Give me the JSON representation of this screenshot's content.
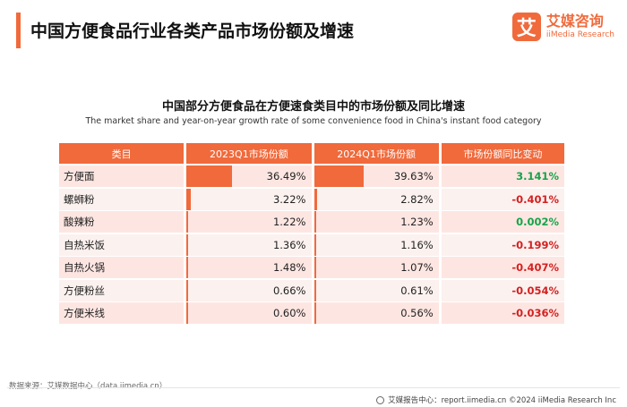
{
  "header": {
    "title": "中国方便食品行业各类产品市场份额及增速",
    "logo_mark": "艾",
    "logo_cn": "艾媒咨询",
    "logo_en": "iiMedia Research"
  },
  "colors": {
    "accent": "#f06a3c",
    "positive": "#17a34a",
    "negative": "#d32121"
  },
  "chart_data": {
    "type": "table",
    "title": "中国部分方便食品在方便速食类目中的市场份额及同比增速",
    "subtitle": "The market share and year-on-year growth rate of some convenience food in China's instant food category",
    "columns": [
      "类目",
      "2023Q1市场份额",
      "2024Q1市场份额",
      "市场份额同比变动"
    ],
    "rows": [
      {
        "category": "方便面",
        "share_2023": 36.49,
        "share_2024": 39.63,
        "change": 3.141,
        "share_2023_label": "36.49%",
        "share_2024_label": "39.63%",
        "change_label": "3.141%"
      },
      {
        "category": "螺蛳粉",
        "share_2023": 3.22,
        "share_2024": 2.82,
        "change": -0.401,
        "share_2023_label": "3.22%",
        "share_2024_label": "2.82%",
        "change_label": "-0.401%"
      },
      {
        "category": "酸辣粉",
        "share_2023": 1.22,
        "share_2024": 1.23,
        "change": 0.002,
        "share_2023_label": "1.22%",
        "share_2024_label": "1.23%",
        "change_label": "0.002%"
      },
      {
        "category": "自热米饭",
        "share_2023": 1.36,
        "share_2024": 1.16,
        "change": -0.199,
        "share_2023_label": "1.36%",
        "share_2024_label": "1.16%",
        "change_label": "-0.199%"
      },
      {
        "category": "自热火锅",
        "share_2023": 1.48,
        "share_2024": 1.07,
        "change": -0.407,
        "share_2023_label": "1.48%",
        "share_2024_label": "1.07%",
        "change_label": "-0.407%"
      },
      {
        "category": "方便粉丝",
        "share_2023": 0.66,
        "share_2024": 0.61,
        "change": -0.054,
        "share_2023_label": "0.66%",
        "share_2024_label": "0.61%",
        "change_label": "-0.054%"
      },
      {
        "category": "方便米线",
        "share_2023": 0.6,
        "share_2024": 0.56,
        "change": -0.036,
        "share_2023_label": "0.60%",
        "share_2024_label": "0.56%",
        "change_label": "-0.036%"
      }
    ],
    "bar_scale_max": 100
  },
  "footer": {
    "source": "数据来源：艾媒数据中心（data.iimedia.cn）",
    "right": "艾媒报告中心：report.iimedia.cn   ©2024  iiMedia Research Inc"
  }
}
